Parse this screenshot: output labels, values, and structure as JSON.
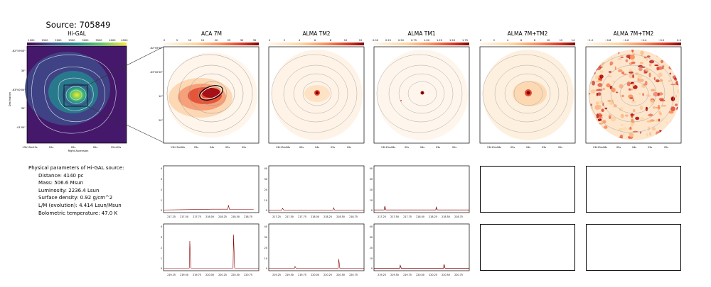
{
  "source_title": "Source: 705849",
  "panels": {
    "higal": {
      "title": "Hi-GAL",
      "colorbar_ticks": [
        "1000",
        "1500",
        "2000",
        "2500",
        "3000",
        "3500",
        "4000",
        "4500"
      ],
      "y_ticks": [
        "-62°59'00\"",
        "30\"",
        "-63°00'00\"",
        "30\"",
        "-01'00\""
      ],
      "x_ticks": [
        "13h13m15s",
        "10s",
        "05s",
        "00s",
        "12m55s"
      ],
      "xlabel": "Right Ascension",
      "ylabel": "Declination",
      "cmap": "viridis"
    },
    "aca": {
      "title": "ACA 7M",
      "colorbar_ticks": [
        "0",
        "5",
        "10",
        "15",
        "20",
        "25",
        "30",
        "35"
      ],
      "y_ticks": [
        "-62°59'50\"",
        "-63°00'00\"",
        "10\"",
        "20\""
      ],
      "x_ticks": [
        "13h13m06s",
        "05s",
        "04s",
        "03s",
        "02s"
      ]
    },
    "tm2": {
      "title": "ALMA TM2",
      "colorbar_ticks": [
        "0",
        "2",
        "4",
        "6",
        "8",
        "10",
        "12"
      ],
      "x_ticks": [
        "13h13m06s",
        "05s",
        "04s",
        "03s",
        "02s"
      ]
    },
    "tm1": {
      "title": "ALMA TM1",
      "colorbar_ticks": [
        "0.00",
        "0.25",
        "0.50",
        "0.75",
        "1.00",
        "1.25",
        "1.50",
        "1.75"
      ],
      "x_ticks": [
        "13h13m06s",
        "05s",
        "04s",
        "03s",
        "02s"
      ]
    },
    "c7mtm2": {
      "title": "ALMA 7M+TM2",
      "colorbar_ticks": [
        "0",
        "2",
        "4",
        "6",
        "8",
        "10",
        "12",
        "14"
      ],
      "x_ticks": [
        "13h13m06s",
        "05s",
        "04s",
        "03s",
        "02s"
      ]
    },
    "c7mtm2b": {
      "title": "ALMA 7M+TM2",
      "colorbar_ticks": [
        "−1.0",
        "−0.8",
        "−0.6",
        "−0.4",
        "−0.2",
        "0.0"
      ],
      "x_ticks": [
        "13h13m06s",
        "05s",
        "04s",
        "03s",
        "02s"
      ]
    }
  },
  "params": {
    "heading": "Physical parameters of Hi-GAL source:",
    "distance": "Distance: 4140 pc",
    "mass": "Mass: 506.6 Msun",
    "luminosity": "Luminosity: 2236.4 Lsun",
    "surface_density": "Surface density: 0.92 g/cm^2",
    "lm": "L/M (evolution): 4.414 Lsun/Msun",
    "tbol": "Bolometric temperature: 47.0 K"
  },
  "spectra": {
    "row1_x_ticks": [
      "217.25",
      "217.50",
      "217.75",
      "218.00",
      "218.25",
      "218.50",
      "218.75"
    ],
    "row2_x_ticks": [
      "219.25",
      "219.50",
      "219.75",
      "220.00",
      "220.25",
      "220.50",
      "220.75"
    ],
    "aca_y_ticks": [
      "0",
      "1",
      "2",
      "3",
      "4"
    ],
    "tm2_y_ticks": [
      "0",
      "10",
      "20",
      "30",
      "40"
    ],
    "tm1_y_ticks": [
      "0",
      "10",
      "20",
      "30",
      "40"
    ]
  },
  "chart_data": [
    {
      "type": "line",
      "panel": "ACA 7M row1",
      "x": [
        217.05,
        217.5,
        218.0,
        218.3,
        218.31,
        218.33,
        218.8
      ],
      "values": [
        0.05,
        0.08,
        0.12,
        0.12,
        0.5,
        0.1,
        0.1
      ],
      "ylim": [
        -0.2,
        4.2
      ],
      "xlim": [
        217.05,
        218.9
      ]
    },
    {
      "type": "line",
      "panel": "ALMA TM2 row1",
      "x": [
        217.05,
        217.3,
        217.32,
        217.34,
        218.3,
        218.31,
        218.33,
        218.9
      ],
      "values": [
        0.3,
        0.3,
        2.0,
        0.3,
        0.3,
        2.5,
        0.3,
        0.3
      ],
      "ylim": [
        -2,
        42
      ],
      "xlim": [
        217.05,
        218.9
      ]
    },
    {
      "type": "line",
      "panel": "ALMA TM1 row1",
      "x": [
        217.05,
        217.25,
        217.26,
        217.28,
        218.25,
        218.26,
        218.28,
        218.9
      ],
      "values": [
        0.5,
        0.5,
        4.0,
        0.5,
        0.5,
        3.0,
        0.5,
        0.5
      ],
      "ylim": [
        -2,
        42
      ],
      "xlim": [
        217.05,
        218.9
      ]
    },
    {
      "type": "line",
      "panel": "ACA 7M row2",
      "x": [
        219.05,
        219.55,
        219.56,
        219.58,
        220.4,
        220.41,
        220.43,
        220.9
      ],
      "values": [
        0.05,
        0.05,
        2.6,
        0.05,
        0.05,
        3.2,
        0.05,
        0.05
      ],
      "ylim": [
        -0.2,
        4.2
      ],
      "xlim": [
        219.05,
        220.9
      ]
    },
    {
      "type": "line",
      "panel": "ALMA TM2 row2",
      "x": [
        219.05,
        219.55,
        219.56,
        219.58,
        220.4,
        220.41,
        220.43,
        220.9
      ],
      "values": [
        0.3,
        0.3,
        2.0,
        0.3,
        0.3,
        9.0,
        0.3,
        0.3
      ],
      "ylim": [
        -2,
        42
      ],
      "xlim": [
        219.05,
        220.9
      ]
    },
    {
      "type": "line",
      "panel": "ALMA TM1 row2",
      "x": [
        219.05,
        219.55,
        219.56,
        219.58,
        220.4,
        220.41,
        220.43,
        220.9
      ],
      "values": [
        0.3,
        0.3,
        3.0,
        0.3,
        0.3,
        4.0,
        0.3,
        0.3
      ],
      "ylim": [
        -2,
        42
      ],
      "xlim": [
        219.05,
        220.9
      ]
    }
  ]
}
